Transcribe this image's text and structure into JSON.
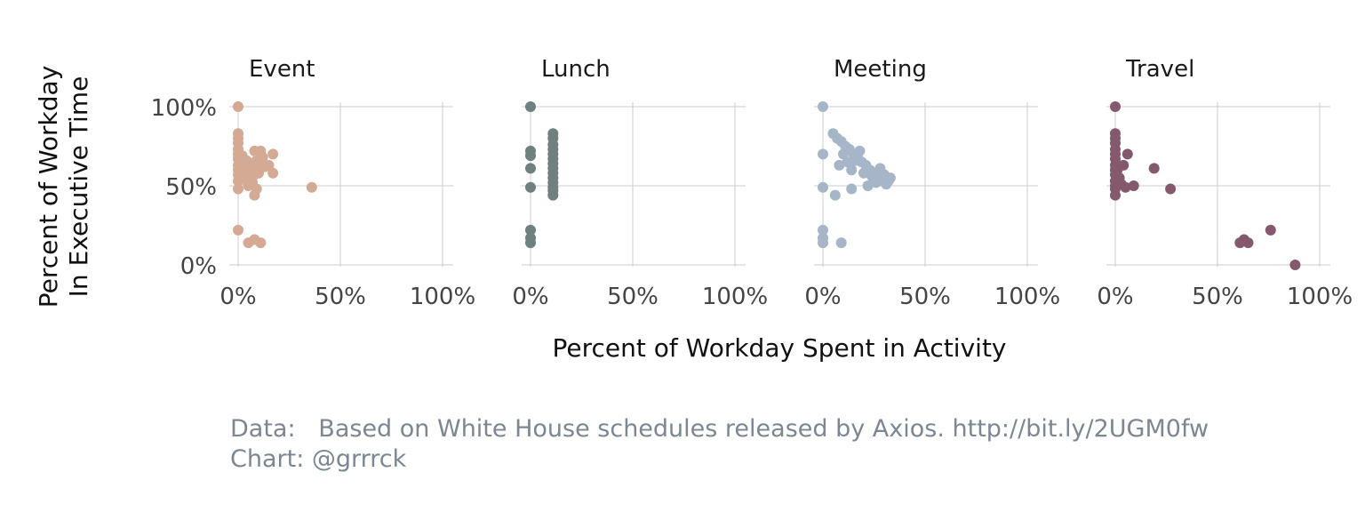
{
  "chart_data": {
    "type": "scatter",
    "xlabel": "Percent of Workday Spent in Activity",
    "ylabel_lines": [
      "Percent of Workday",
      "In Executive Time"
    ],
    "xlim": [
      0,
      100
    ],
    "ylim": [
      0,
      100
    ],
    "x_ticks": [
      "0%",
      "50%",
      "100%"
    ],
    "y_ticks": [
      "0%",
      "50%",
      "100%"
    ],
    "grid": true,
    "facets": [
      {
        "name": "Event",
        "color": "#d4aa95",
        "points": [
          [
            0,
            100
          ],
          [
            0,
            83
          ],
          [
            0,
            80
          ],
          [
            0,
            77
          ],
          [
            0,
            73
          ],
          [
            0,
            70
          ],
          [
            0,
            67
          ],
          [
            0,
            63
          ],
          [
            0,
            60
          ],
          [
            0,
            57
          ],
          [
            0,
            53
          ],
          [
            0,
            48
          ],
          [
            2,
            69
          ],
          [
            3,
            62
          ],
          [
            3,
            57
          ],
          [
            4,
            53
          ],
          [
            4,
            66
          ],
          [
            5,
            59
          ],
          [
            5,
            50
          ],
          [
            6,
            64
          ],
          [
            6,
            55
          ],
          [
            7,
            60
          ],
          [
            7,
            52
          ],
          [
            8,
            72
          ],
          [
            8,
            57
          ],
          [
            9,
            66
          ],
          [
            9,
            48
          ],
          [
            10,
            58
          ],
          [
            10,
            61
          ],
          [
            11,
            72
          ],
          [
            12,
            68
          ],
          [
            13,
            62
          ],
          [
            15,
            63
          ],
          [
            17,
            70
          ],
          [
            17,
            58
          ],
          [
            8,
            44
          ],
          [
            36,
            49
          ],
          [
            0,
            22
          ],
          [
            5,
            14
          ],
          [
            8,
            16
          ],
          [
            11,
            14
          ]
        ]
      },
      {
        "name": "Lunch",
        "color": "#6e8080",
        "points": [
          [
            0,
            100
          ],
          [
            0,
            72
          ],
          [
            0,
            69
          ],
          [
            0,
            61
          ],
          [
            0,
            49
          ],
          [
            0,
            22
          ],
          [
            0,
            17
          ],
          [
            0,
            14
          ],
          [
            11,
            83
          ],
          [
            11,
            80
          ],
          [
            11,
            76
          ],
          [
            11,
            73
          ],
          [
            11,
            70
          ],
          [
            11,
            67
          ],
          [
            11,
            64
          ],
          [
            11,
            61
          ],
          [
            11,
            58
          ],
          [
            11,
            55
          ],
          [
            11,
            52
          ],
          [
            11,
            49
          ],
          [
            11,
            47
          ],
          [
            11,
            44
          ]
        ]
      },
      {
        "name": "Meeting",
        "color": "#a6b6c8",
        "points": [
          [
            0,
            100
          ],
          [
            0,
            70
          ],
          [
            0,
            49
          ],
          [
            0,
            22
          ],
          [
            0,
            17
          ],
          [
            0,
            14
          ],
          [
            5,
            83
          ],
          [
            7,
            80
          ],
          [
            9,
            78
          ],
          [
            11,
            75
          ],
          [
            13,
            73
          ],
          [
            15,
            70
          ],
          [
            17,
            68
          ],
          [
            19,
            65
          ],
          [
            21,
            63
          ],
          [
            23,
            60
          ],
          [
            25,
            58
          ],
          [
            27,
            56
          ],
          [
            29,
            53
          ],
          [
            31,
            51
          ],
          [
            33,
            55
          ],
          [
            8,
            63
          ],
          [
            10,
            70
          ],
          [
            12,
            65
          ],
          [
            14,
            60
          ],
          [
            16,
            66
          ],
          [
            18,
            72
          ],
          [
            20,
            58
          ],
          [
            22,
            50
          ],
          [
            24,
            56
          ],
          [
            26,
            52
          ],
          [
            28,
            61
          ],
          [
            30,
            57
          ],
          [
            32,
            53
          ],
          [
            14,
            48
          ],
          [
            6,
            44
          ],
          [
            9,
            14
          ]
        ]
      },
      {
        "name": "Travel",
        "color": "#85596d",
        "points": [
          [
            0,
            100
          ],
          [
            0,
            83
          ],
          [
            0,
            80
          ],
          [
            0,
            77
          ],
          [
            0,
            73
          ],
          [
            0,
            70
          ],
          [
            0,
            67
          ],
          [
            0,
            63
          ],
          [
            0,
            60
          ],
          [
            0,
            57
          ],
          [
            0,
            53
          ],
          [
            0,
            50
          ],
          [
            0,
            48
          ],
          [
            0,
            44
          ],
          [
            1,
            60
          ],
          [
            2,
            55
          ],
          [
            3,
            51
          ],
          [
            4,
            63
          ],
          [
            5,
            49
          ],
          [
            6,
            70
          ],
          [
            9,
            50
          ],
          [
            19,
            61
          ],
          [
            27,
            48
          ],
          [
            61,
            14
          ],
          [
            63,
            16
          ],
          [
            65,
            14
          ],
          [
            76,
            22
          ],
          [
            88,
            0
          ]
        ]
      }
    ]
  },
  "caption": {
    "line1": "Data:   Based on White House schedules released by Axios. http://bit.ly/2UGM0fw",
    "line2": "Chart: @grrrck"
  }
}
